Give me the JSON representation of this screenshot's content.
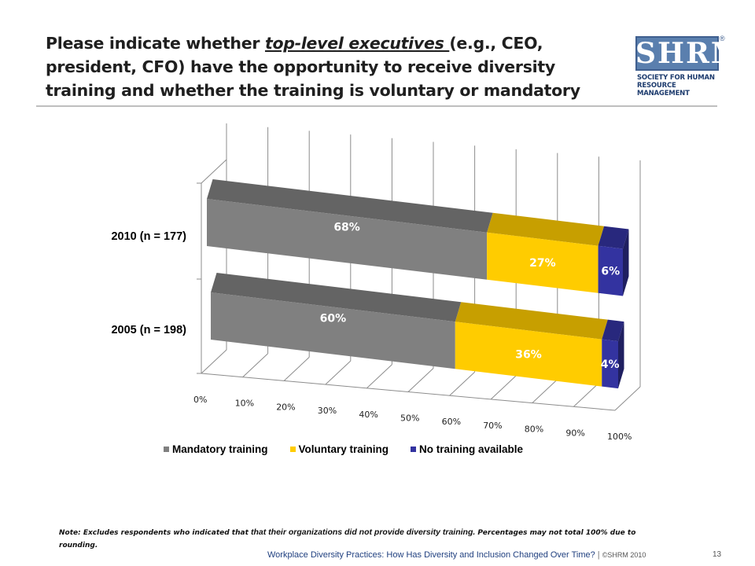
{
  "title": {
    "before": "Please indicate whether ",
    "emphasis": "top-level executives ",
    "after": "(e.g., CEO, president, CFO) have the opportunity to receive diversity training and whether the training is voluntary or mandatory"
  },
  "logo": {
    "letters": "SHRM",
    "registered": "®",
    "subtitle_line1": "SOCIETY FOR HUMAN",
    "subtitle_line2": "RESOURCE MANAGEMENT"
  },
  "chart_data": {
    "type": "bar",
    "orientation": "horizontal",
    "stacked": true,
    "perspective_3d": true,
    "categories": [
      "2010 (n = 177)",
      "2005 (n = 198)"
    ],
    "series": [
      {
        "name": "Mandatory training",
        "values": [
          68,
          60
        ],
        "labels": [
          "68%",
          "60%"
        ],
        "color": "#808080",
        "label_color": "#ffffff"
      },
      {
        "name": "Voluntary training",
        "values": [
          27,
          36
        ],
        "labels": [
          "27%",
          "36%"
        ],
        "color": "#ffcc00",
        "label_color": "#ffffff"
      },
      {
        "name": "No training available",
        "values": [
          6,
          4
        ],
        "labels": [
          "6%",
          "4%"
        ],
        "color": "#3333a0",
        "label_color": "#ffffff"
      }
    ],
    "x_ticks": [
      "0%",
      "10%",
      "20%",
      "30%",
      "40%",
      "50%",
      "60%",
      "70%",
      "80%",
      "90%",
      "100%"
    ],
    "xlim": [
      0,
      100
    ],
    "grid": true,
    "legend_position": "bottom"
  },
  "note": {
    "prefix": "Note: Excludes respondents who indicated that ",
    "middle": "that their organizations did not provide diversity training.",
    "suffix": " Percentages may not total 100% due to rounding."
  },
  "footer": {
    "text": "Workplace Diversity Practices: How Has Diversity and Inclusion Changed Over Time?",
    "separator": " | ",
    "copyright": "©SHRM 2010",
    "page": "13"
  }
}
